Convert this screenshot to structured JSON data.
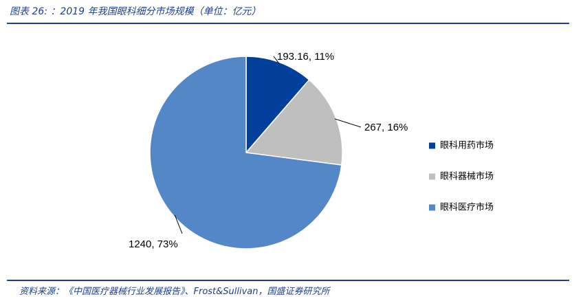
{
  "page": {
    "title": "图表 26: ：2019 年我国眼科细分市场规模（单位：亿元）",
    "source": "资料来源：《中国医疗器械行业发展报告》、Frost&Sullivan，国盛证券研究所"
  },
  "colors": {
    "accent": "#1f3f8c"
  },
  "chart_data": {
    "type": "pie",
    "title": "",
    "unit": "亿元",
    "series": [
      {
        "name": "眼科用药市场",
        "value": 193.16,
        "percent": 11,
        "label": "193.16, 11%",
        "color": "#003f9a"
      },
      {
        "name": "眼科器械市场",
        "value": 267,
        "percent": 16,
        "label": "267, 16%",
        "color": "#bfbfbf"
      },
      {
        "name": "眼科医疗市场",
        "value": 1240,
        "percent": 73,
        "label": "1240, 73%",
        "color": "#5387c8"
      }
    ],
    "start_angle": "12 o'clock",
    "direction": "clockwise",
    "legend_position": "right"
  }
}
